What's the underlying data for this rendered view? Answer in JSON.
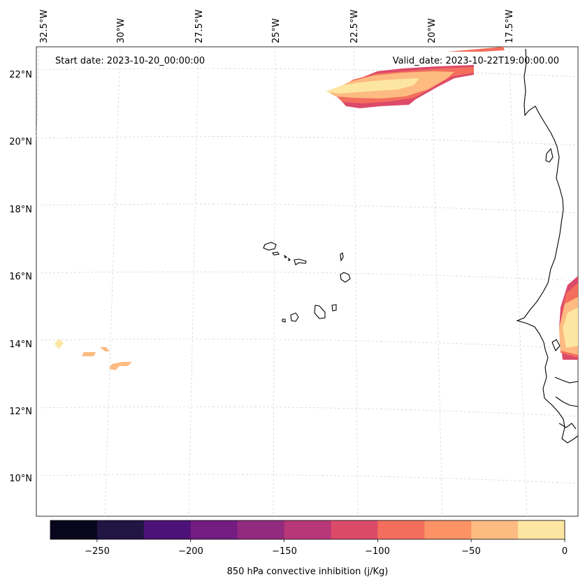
{
  "header": {
    "start_date": "Start date: 2023-10-20_00:00:00",
    "valid_date": "Valid_date: 2023-10-22T19:00:00.00"
  },
  "map": {
    "lon_labels": [
      "32.5°W",
      "30°W",
      "27.5°W",
      "25°W",
      "22.5°W",
      "20°W",
      "17.5°W"
    ],
    "lat_labels": [
      "22°N",
      "20°N",
      "18°N",
      "16°N",
      "14°N",
      "12°N",
      "10°N"
    ]
  },
  "colorbar": {
    "label": "850 hPa convective inhibition (j/Kg)",
    "ticks": [
      "−250",
      "−200",
      "−150",
      "−100",
      "−50",
      "0"
    ],
    "levels": [
      -275,
      -250,
      -225,
      -200,
      -175,
      -150,
      -125,
      -100,
      -75,
      -50,
      -25,
      0
    ],
    "colors": [
      "#07061c",
      "#211544",
      "#4d1277",
      "#731c82",
      "#922a80",
      "#b73779",
      "#dc4a6a",
      "#f36e5c",
      "#fc9265",
      "#fdbb81",
      "#fde6a2"
    ]
  }
}
